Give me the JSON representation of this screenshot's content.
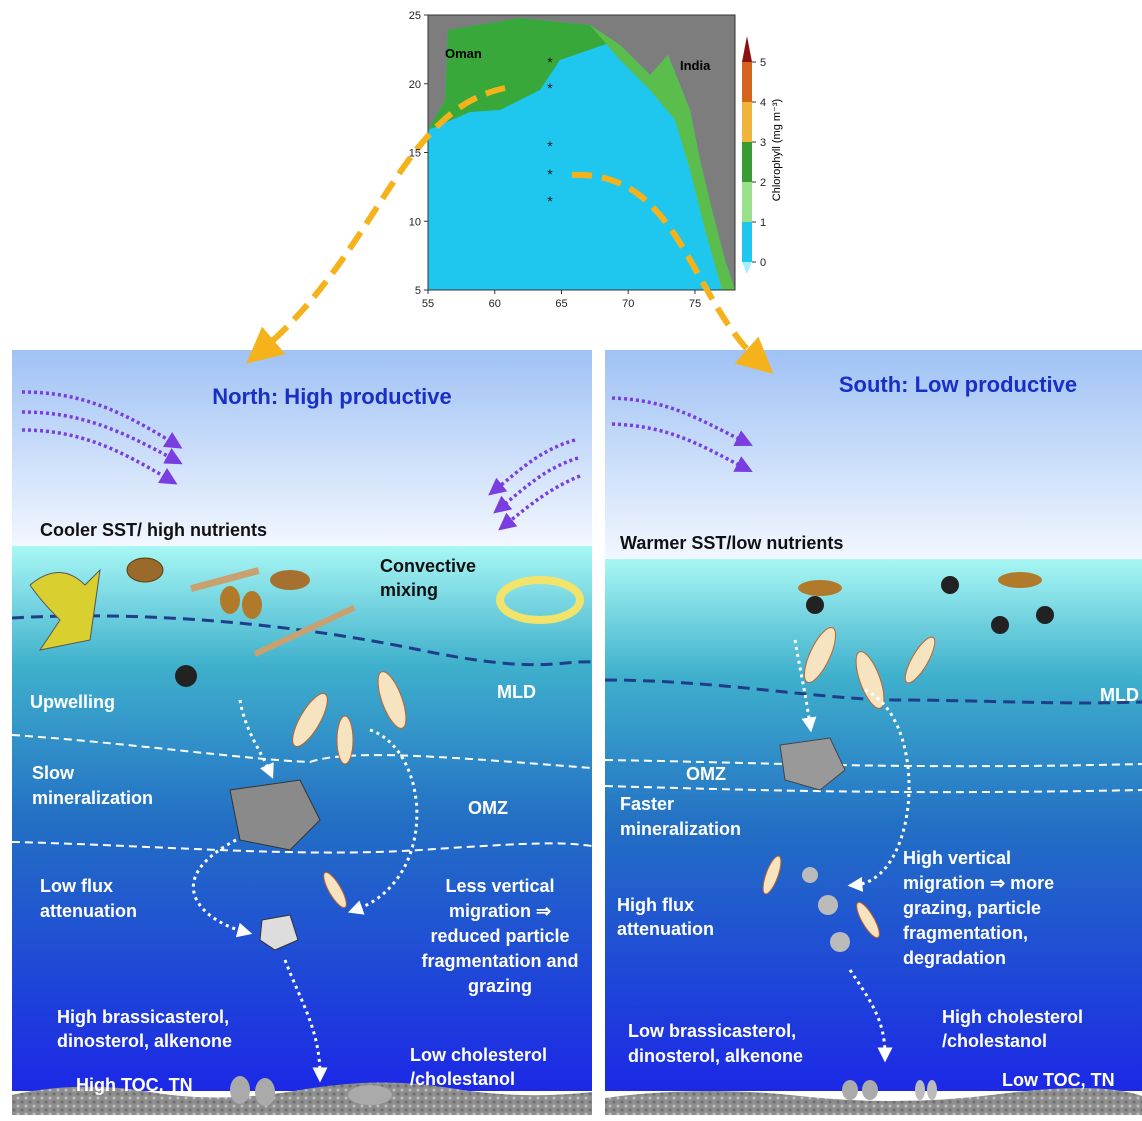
{
  "map": {
    "place_labels": [
      "Oman",
      "India"
    ],
    "xlim": [
      55,
      78
    ],
    "xticks": [
      55,
      60,
      65,
      70,
      75
    ],
    "ylim": [
      5,
      25
    ],
    "yticks": [
      5,
      10,
      15,
      20,
      25
    ],
    "colorbar": {
      "label": "Chlorophyll (mg m⁻³)",
      "clim": [
        0,
        5
      ],
      "ticks": [
        0,
        1,
        2,
        3,
        4,
        5
      ]
    }
  },
  "panels": [
    {
      "title": "North: High productive",
      "labels": [
        [
          "Cooler SST/ high nutrients"
        ],
        [
          "Convective",
          "mixing"
        ],
        [
          "Upwelling"
        ],
        [
          "MLD"
        ],
        [
          "Slow",
          "mineralization"
        ],
        [
          "OMZ"
        ],
        [
          "Low flux",
          "attenuation"
        ],
        [
          "Less vertical",
          "migration ⇒",
          "reduced particle",
          "fragmentation and",
          "grazing"
        ],
        [
          "High brassicasterol,",
          "dinosterol, alkenone"
        ],
        [
          "High TOC, TN"
        ],
        [
          "Low cholesterol",
          "/cholestanol"
        ]
      ]
    },
    {
      "title": "South: Low productive",
      "labels": [
        [
          "Warmer SST/low nutrients"
        ],
        [
          "MLD"
        ],
        [
          "OMZ"
        ],
        [
          "Faster",
          "mineralization"
        ],
        [
          "High flux",
          "attenuation"
        ],
        [
          "High vertical",
          "migration ⇒ more",
          "grazing, particle",
          "fragmentation,",
          "degradation"
        ],
        [
          "Low brassicasterol,",
          "dinosterol, alkenone"
        ],
        [
          "High cholesterol",
          "/cholestanol"
        ],
        [
          "Low TOC, TN"
        ]
      ]
    }
  ]
}
